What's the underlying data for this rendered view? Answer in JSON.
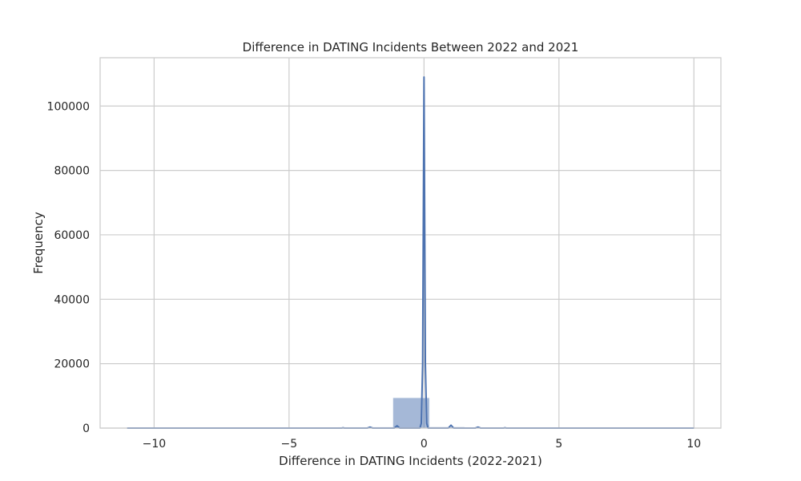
{
  "chart_data": {
    "type": "histogram",
    "title": "Difference in DATING Incidents Between 2022 and 2021",
    "xlabel": "Difference in DATING Incidents (2022-2021)",
    "ylabel": "Frequency",
    "xlim": [
      -12,
      11
    ],
    "ylim": [
      0,
      115000
    ],
    "xticks": [
      -10,
      -5,
      0,
      5,
      10
    ],
    "xtick_labels": [
      "−10",
      "−5",
      "0",
      "5",
      "10"
    ],
    "yticks": [
      0,
      20000,
      40000,
      60000,
      80000,
      100000
    ],
    "ytick_labels": [
      "0",
      "20000",
      "40000",
      "60000",
      "80000",
      "100000"
    ],
    "grid": true,
    "bar_color": "#4c72b0",
    "bar_opacity": 0.5,
    "line_color": "#4c72b0",
    "bars": [
      {
        "x0": -11.0,
        "x1": -9.7,
        "value": 3
      },
      {
        "x0": -9.7,
        "x1": -8.4,
        "value": 1
      },
      {
        "x0": -8.4,
        "x1": -7.1,
        "value": 2
      },
      {
        "x0": -7.1,
        "x1": -5.8,
        "value": 4
      },
      {
        "x0": -5.8,
        "x1": -4.5,
        "value": 10
      },
      {
        "x0": -4.5,
        "x1": -3.2,
        "value": 40
      },
      {
        "x0": -3.2,
        "x1": -1.9,
        "value": 250
      },
      {
        "x0": -1.9,
        "x1": -1.15,
        "value": 300
      },
      {
        "x0": -1.15,
        "x1": 0.2,
        "value": 9400
      },
      {
        "x0": 0.2,
        "x1": 1.5,
        "value": 350
      },
      {
        "x0": 1.5,
        "x1": 2.8,
        "value": 120
      },
      {
        "x0": 2.8,
        "x1": 4.1,
        "value": 40
      },
      {
        "x0": 4.1,
        "x1": 5.4,
        "value": 10
      },
      {
        "x0": 5.4,
        "x1": 6.7,
        "value": 4
      },
      {
        "x0": 6.7,
        "x1": 8.0,
        "value": 2
      },
      {
        "x0": 8.0,
        "x1": 9.3,
        "value": 1
      },
      {
        "x0": 9.3,
        "x1": 10.0,
        "value": 2
      }
    ],
    "kde": {
      "x": [
        -11,
        -4,
        -3.05,
        -3,
        -2.95,
        -2.1,
        -2,
        -1.9,
        -1.1,
        -1,
        -0.9,
        -0.15,
        -0.1,
        -0.05,
        0,
        0.05,
        0.1,
        0.15,
        0.2,
        0.9,
        1,
        1.1,
        1.9,
        2,
        2.1,
        2.95,
        3,
        3.05,
        10
      ],
      "y": [
        0,
        0,
        0,
        100,
        0,
        0,
        300,
        0,
        0,
        700,
        0,
        0,
        1500,
        20000,
        109000,
        20000,
        1500,
        0,
        0,
        0,
        900,
        0,
        0,
        300,
        0,
        0,
        100,
        0,
        0
      ]
    }
  }
}
